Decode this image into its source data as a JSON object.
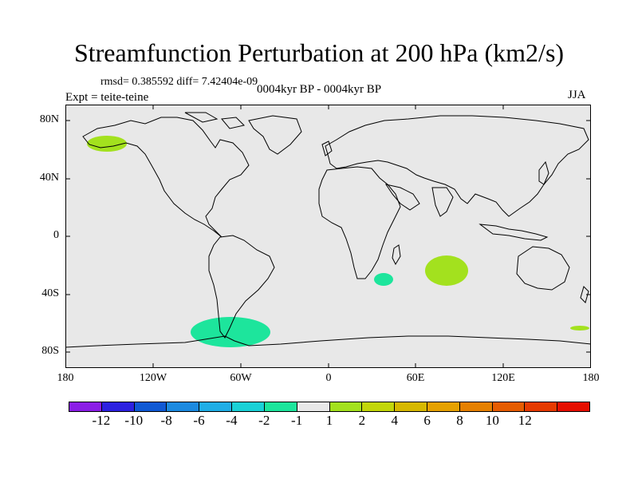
{
  "title": "Streamfunction Perturbation at 200 hPa (km2/s)",
  "stats": "rmsd= 0.385592 diff= 7.42404e-09",
  "subtitle": "0004kyr BP - 0004kyr BP",
  "experiment": "Expt = teite-teine",
  "season": "JJA",
  "axes": {
    "y_labels": [
      "80N",
      "40N",
      "0",
      "40S",
      "80S"
    ],
    "x_labels": [
      "180",
      "120W",
      "60W",
      "0",
      "60E",
      "120E",
      "180"
    ]
  },
  "colorbar": {
    "colors": [
      "#8b1ee6",
      "#2d22e0",
      "#1059d4",
      "#1c8ae0",
      "#20aee6",
      "#1ad1d6",
      "#1de59c",
      "#e8e8e8",
      "#a3e11e",
      "#c2d60a",
      "#d6b800",
      "#e6a100",
      "#e68000",
      "#e65c00",
      "#e63a00",
      "#e60f00"
    ],
    "labels": [
      "-12",
      "-10",
      "-8",
      "-6",
      "-4",
      "-2",
      "-1",
      "1",
      "2",
      "4",
      "6",
      "8",
      "10",
      "12"
    ]
  },
  "colors": {
    "map_background": "#e8e8e8",
    "positive_anomaly": "#a3e11e",
    "negative_anomaly": "#1de59c",
    "coastline": "#000000"
  },
  "anomalies": [
    {
      "name": "alaska",
      "sign": "positive",
      "level": "1 to 2"
    },
    {
      "name": "indian-ocean",
      "sign": "positive",
      "level": "1 to 2"
    },
    {
      "name": "madagascar",
      "sign": "negative",
      "level": "-2 to -1"
    },
    {
      "name": "antarctic-peninsula",
      "sign": "negative",
      "level": "-2 to -1"
    },
    {
      "name": "ross-sea",
      "sign": "positive",
      "level": "1 to 2"
    }
  ]
}
